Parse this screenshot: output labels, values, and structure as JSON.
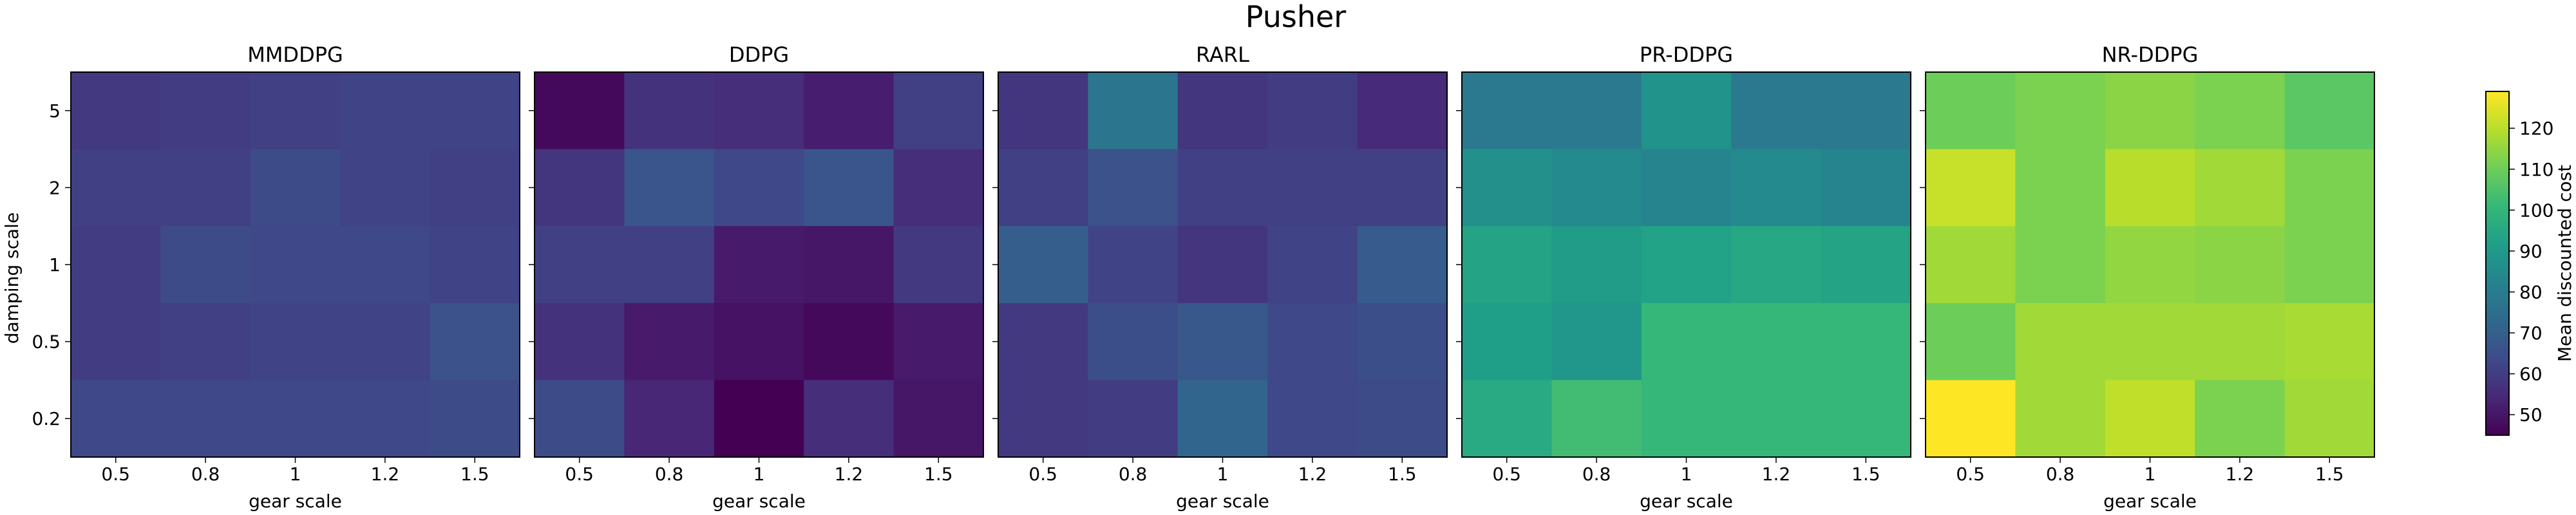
{
  "figure": {
    "title": "Pusher",
    "xlabel": "gear scale",
    "ylabel": "damping scale",
    "colorbar_label": "Mean discounted cost",
    "colormap": "viridis"
  },
  "chart_data": [
    {
      "type": "heatmap",
      "title": "MMDDPG",
      "x": [
        "0.5",
        "0.8",
        "1",
        "1.2",
        "1.5"
      ],
      "y": [
        "5",
        "2",
        "1",
        "0.5",
        "0.2"
      ],
      "z": [
        [
          59,
          60,
          61,
          62,
          62
        ],
        [
          61,
          61,
          64,
          62,
          61
        ],
        [
          60,
          64,
          63,
          63,
          62
        ],
        [
          60,
          61,
          62,
          62,
          66
        ],
        [
          63,
          63,
          63,
          63,
          64
        ]
      ]
    },
    {
      "type": "heatmap",
      "title": "DDPG",
      "x": [
        "0.5",
        "0.8",
        "1",
        "1.2",
        "1.5"
      ],
      "y": [
        "5",
        "2",
        "1",
        "0.5",
        "0.2"
      ],
      "z": [
        [
          47,
          57,
          56,
          52,
          61
        ],
        [
          58,
          67,
          63,
          67,
          56
        ],
        [
          61,
          61,
          51,
          50,
          59
        ],
        [
          57,
          51,
          49,
          47,
          51
        ],
        [
          64,
          54,
          45,
          56,
          50
        ]
      ]
    },
    {
      "type": "heatmap",
      "title": "RARL",
      "x": [
        "0.5",
        "0.8",
        "1",
        "1.2",
        "1.5"
      ],
      "y": [
        "5",
        "2",
        "1",
        "0.5",
        "0.2"
      ],
      "z": [
        [
          58,
          78,
          58,
          60,
          55
        ],
        [
          61,
          66,
          61,
          61,
          61
        ],
        [
          70,
          62,
          58,
          62,
          69
        ],
        [
          59,
          65,
          68,
          63,
          65
        ],
        [
          59,
          60,
          72,
          63,
          64
        ]
      ]
    },
    {
      "type": "heatmap",
      "title": "PR-DDPG",
      "x": [
        "0.5",
        "0.8",
        "1",
        "1.2",
        "1.5"
      ],
      "y": [
        "5",
        "2",
        "1",
        "0.5",
        "0.2"
      ],
      "z": [
        [
          79,
          79,
          88,
          79,
          79
        ],
        [
          87,
          85,
          83,
          85,
          83
        ],
        [
          94,
          91,
          93,
          95,
          94
        ],
        [
          92,
          89,
          101,
          101,
          101
        ],
        [
          96,
          103,
          101,
          101,
          101
        ]
      ]
    },
    {
      "type": "heatmap",
      "title": "NR-DDPG",
      "x": [
        "0.5",
        "0.8",
        "1",
        "1.2",
        "1.5"
      ],
      "y": [
        "5",
        "2",
        "1",
        "0.5",
        "0.2"
      ],
      "z": [
        [
          110,
          112,
          114,
          112,
          107
        ],
        [
          122,
          112,
          120,
          117,
          112
        ],
        [
          117,
          112,
          115,
          114,
          112
        ],
        [
          110,
          117,
          117,
          117,
          118
        ],
        [
          129,
          117,
          121,
          112,
          117
        ]
      ]
    }
  ],
  "colorbar": {
    "min": 45,
    "max": 129,
    "ticks": [
      "50",
      "60",
      "70",
      "80",
      "90",
      "100",
      "110",
      "120"
    ]
  }
}
